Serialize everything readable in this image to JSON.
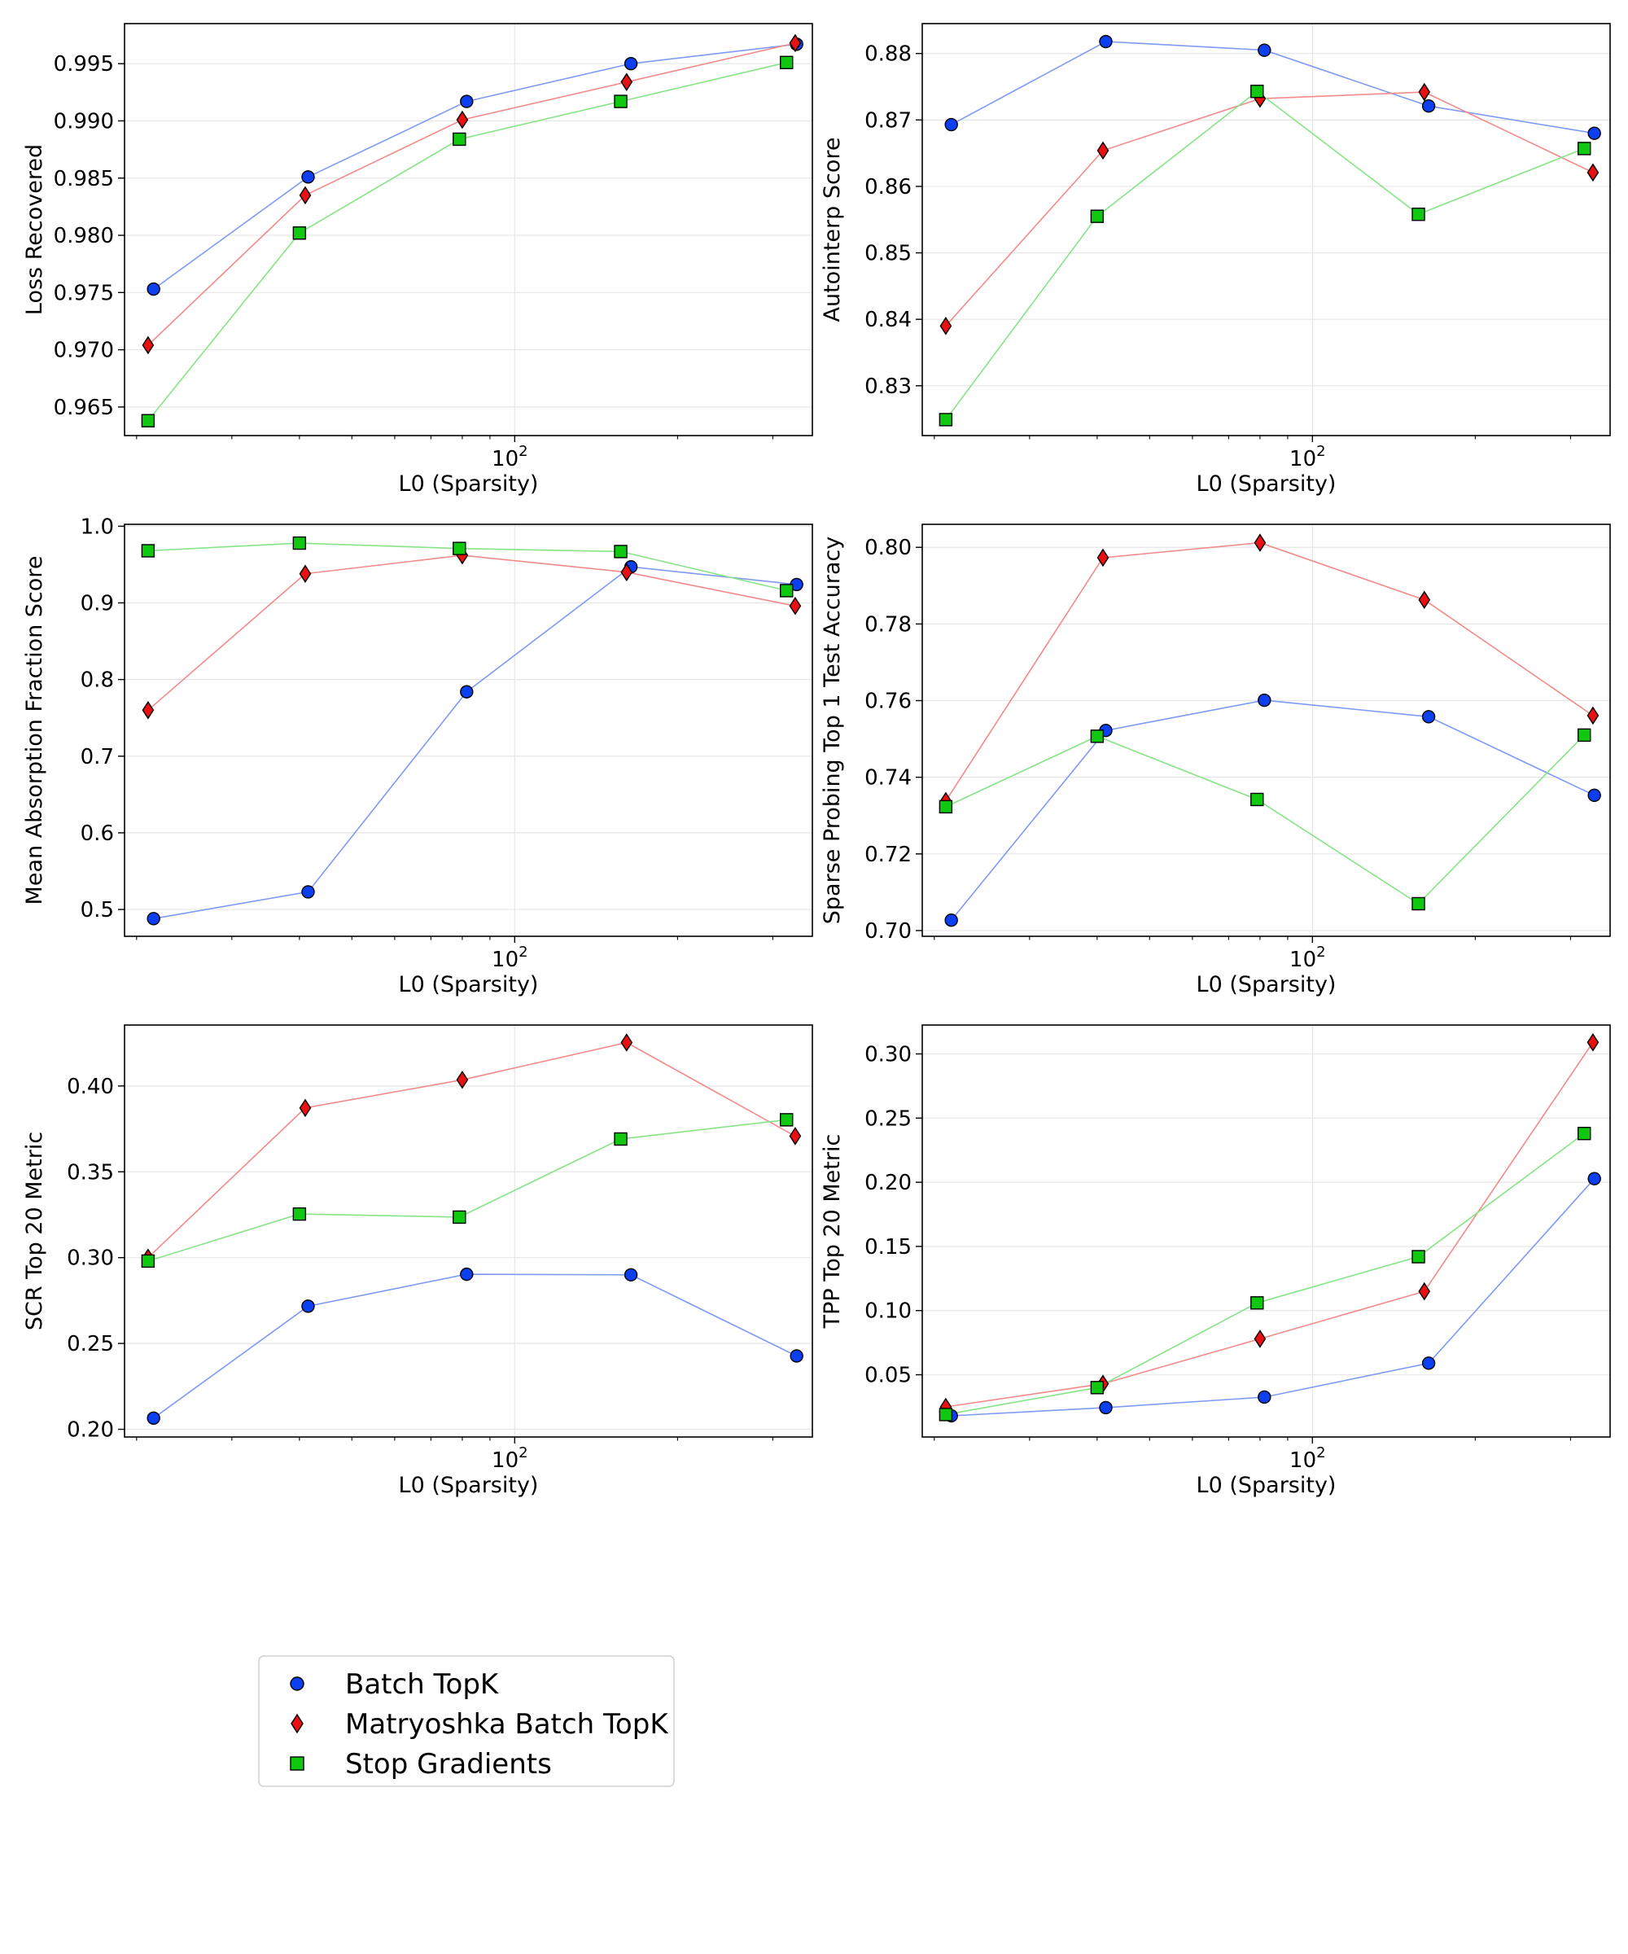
{
  "legend": {
    "placement": "bottom-left",
    "items": [
      {
        "label": "Batch TopK",
        "color": "#0b3ff0",
        "marker": "circle"
      },
      {
        "label": "Matryoshka Batch TopK",
        "color": "#e81010",
        "marker": "diamond"
      },
      {
        "label": "Stop Gradients",
        "color": "#10c810",
        "marker": "square"
      }
    ]
  },
  "line_colors": {
    "blue": "#7f9af5",
    "red": "#f38a8a",
    "green": "#86e486"
  },
  "chart_data": [
    {
      "type": "line",
      "xlabel": "L0 (Sparsity)",
      "ylabel": "Loss Recovered",
      "x_scale": "log",
      "xlim": [
        19,
        355
      ],
      "ylim": [
        0.9625,
        0.9985
      ],
      "yticks": [
        0.965,
        0.97,
        0.975,
        0.98,
        0.985,
        0.99,
        0.995
      ],
      "ytick_labels": [
        "0.965",
        "0.970",
        "0.975",
        "0.980",
        "0.985",
        "0.990",
        "0.995"
      ],
      "xtick_label": "10",
      "xtick_exp": "2",
      "grid": true,
      "series": [
        {
          "name": "Batch TopK",
          "x": [
            21.5,
            41.5,
            81.5,
            164,
            332
          ],
          "y": [
            0.9753,
            0.9851,
            0.9917,
            0.995,
            0.9967
          ]
        },
        {
          "name": "Matryoshka Batch TopK",
          "x": [
            21,
            41,
            80,
            161,
            330
          ],
          "y": [
            0.9704,
            0.9835,
            0.9901,
            0.9934,
            0.9968
          ]
        },
        {
          "name": "Stop Gradients",
          "x": [
            21,
            40,
            79,
            157,
            318
          ],
          "y": [
            0.9638,
            0.9802,
            0.9884,
            0.9917,
            0.9951
          ]
        }
      ]
    },
    {
      "type": "line",
      "xlabel": "L0 (Sparsity)",
      "ylabel": "Autointerp Score",
      "x_scale": "log",
      "xlim": [
        19,
        355
      ],
      "ylim": [
        0.8225,
        0.8845
      ],
      "yticks": [
        0.83,
        0.84,
        0.85,
        0.86,
        0.87,
        0.88
      ],
      "ytick_labels": [
        "0.83",
        "0.84",
        "0.85",
        "0.86",
        "0.87",
        "0.88"
      ],
      "xtick_label": "10",
      "xtick_exp": "2",
      "grid": true,
      "series": [
        {
          "name": "Batch TopK",
          "x": [
            21.5,
            41.5,
            81.5,
            164,
            332
          ],
          "y": [
            0.8693,
            0.8818,
            0.8805,
            0.8721,
            0.868
          ]
        },
        {
          "name": "Matryoshka Batch TopK",
          "x": [
            21,
            41,
            80,
            161,
            330
          ],
          "y": [
            0.839,
            0.8654,
            0.8732,
            0.8742,
            0.8621
          ]
        },
        {
          "name": "Stop Gradients",
          "x": [
            21,
            40,
            79,
            157,
            318
          ],
          "y": [
            0.8249,
            0.8555,
            0.8743,
            0.8558,
            0.8657
          ]
        }
      ]
    },
    {
      "type": "line",
      "xlabel": "L0 (Sparsity)",
      "ylabel": "Mean Absorption Fraction Score",
      "x_scale": "log",
      "xlim": [
        19,
        355
      ],
      "ylim": [
        0.465,
        1.0025
      ],
      "yticks": [
        0.5,
        0.6,
        0.7,
        0.8,
        0.9,
        1.0
      ],
      "ytick_labels": [
        "0.5",
        "0.6",
        "0.7",
        "0.8",
        "0.9",
        "1.0"
      ],
      "xtick_label": "10",
      "xtick_exp": "2",
      "grid": true,
      "series": [
        {
          "name": "Batch TopK",
          "x": [
            21.5,
            41.5,
            81.5,
            164,
            332
          ],
          "y": [
            0.488,
            0.523,
            0.784,
            0.947,
            0.924
          ]
        },
        {
          "name": "Matryoshka Batch TopK",
          "x": [
            21,
            41,
            80,
            161,
            330
          ],
          "y": [
            0.76,
            0.938,
            0.962,
            0.94,
            0.896
          ]
        },
        {
          "name": "Stop Gradients",
          "x": [
            21,
            40,
            79,
            157,
            318
          ],
          "y": [
            0.968,
            0.978,
            0.971,
            0.967,
            0.916
          ]
        }
      ]
    },
    {
      "type": "line",
      "xlabel": "L0 (Sparsity)",
      "ylabel": "Sparse Probing Top 1 Test Accuracy",
      "x_scale": "log",
      "xlim": [
        19,
        355
      ],
      "ylim": [
        0.6985,
        0.806
      ],
      "yticks": [
        0.7,
        0.72,
        0.74,
        0.76,
        0.78,
        0.8
      ],
      "ytick_labels": [
        "0.70",
        "0.72",
        "0.74",
        "0.76",
        "0.78",
        "0.80"
      ],
      "xtick_label": "10",
      "xtick_exp": "2",
      "grid": true,
      "series": [
        {
          "name": "Batch TopK",
          "x": [
            21.5,
            41.5,
            81.5,
            164,
            332
          ],
          "y": [
            0.7027,
            0.7522,
            0.7601,
            0.7558,
            0.7353
          ]
        },
        {
          "name": "Matryoshka Batch TopK",
          "x": [
            21,
            41,
            80,
            161,
            330
          ],
          "y": [
            0.7338,
            0.7973,
            0.8012,
            0.7863,
            0.7561
          ]
        },
        {
          "name": "Stop Gradients",
          "x": [
            21,
            40,
            79,
            157,
            318
          ],
          "y": [
            0.7323,
            0.7507,
            0.7342,
            0.707,
            0.751
          ]
        }
      ]
    },
    {
      "type": "line",
      "xlabel": "L0 (Sparsity)",
      "ylabel": "SCR Top 20 Metric",
      "x_scale": "log",
      "xlim": [
        19,
        355
      ],
      "ylim": [
        0.1955,
        0.4355
      ],
      "yticks": [
        0.2,
        0.25,
        0.3,
        0.35,
        0.4
      ],
      "ytick_labels": [
        "0.20",
        "0.25",
        "0.30",
        "0.35",
        "0.40"
      ],
      "xtick_label": "10",
      "xtick_exp": "2",
      "grid": true,
      "series": [
        {
          "name": "Batch TopK",
          "x": [
            21.5,
            41.5,
            81.5,
            164,
            332
          ],
          "y": [
            0.2065,
            0.2717,
            0.2903,
            0.29,
            0.2427
          ]
        },
        {
          "name": "Matryoshka Batch TopK",
          "x": [
            21,
            41,
            80,
            161,
            330
          ],
          "y": [
            0.3,
            0.3872,
            0.4036,
            0.4253,
            0.3708
          ]
        },
        {
          "name": "Stop Gradients",
          "x": [
            21,
            40,
            79,
            157,
            318
          ],
          "y": [
            0.298,
            0.3254,
            0.3236,
            0.3691,
            0.3803
          ]
        }
      ]
    },
    {
      "type": "line",
      "xlabel": "L0 (Sparsity)",
      "ylabel": "TPP Top 20 Metric",
      "x_scale": "log",
      "xlim": [
        19,
        355
      ],
      "ylim": [
        0.0015,
        0.3225
      ],
      "yticks": [
        0.05,
        0.1,
        0.15,
        0.2,
        0.25,
        0.3
      ],
      "ytick_labels": [
        "0.05",
        "0.10",
        "0.15",
        "0.20",
        "0.25",
        "0.30"
      ],
      "xtick_label": "10",
      "xtick_exp": "2",
      "grid": true,
      "series": [
        {
          "name": "Batch TopK",
          "x": [
            21.5,
            41.5,
            81.5,
            164,
            332
          ],
          "y": [
            0.018,
            0.0244,
            0.0326,
            0.059,
            0.2028
          ]
        },
        {
          "name": "Matryoshka Batch TopK",
          "x": [
            21,
            41,
            80,
            161,
            330
          ],
          "y": [
            0.025,
            0.043,
            0.078,
            0.115,
            0.309
          ]
        },
        {
          "name": "Stop Gradients",
          "x": [
            21,
            40,
            79,
            157,
            318
          ],
          "y": [
            0.019,
            0.04,
            0.106,
            0.142,
            0.238
          ]
        }
      ]
    }
  ]
}
